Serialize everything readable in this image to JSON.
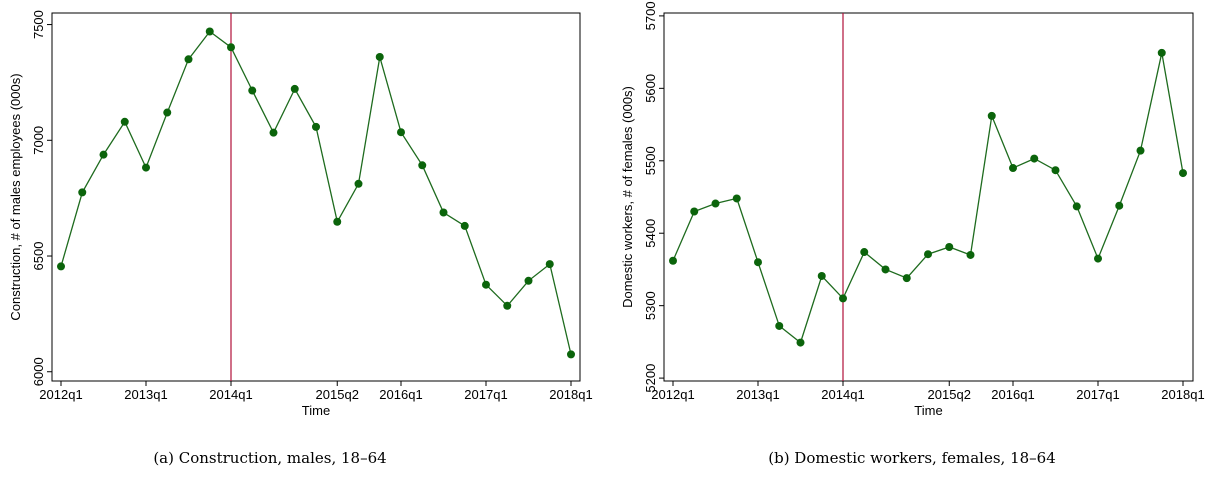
{
  "chart_data": [
    {
      "type": "line",
      "caption": "(a) Construction, males, 18–64",
      "xlabel": "Time",
      "ylabel": "Construction, # of males employees (000s)",
      "x_ticks": [
        "2012q1",
        "2013q1",
        "2014q1",
        "2015q2",
        "2016q1",
        "2017q1",
        "2018q1"
      ],
      "y_ticks": [
        6000,
        6500,
        7000,
        7500
      ],
      "ylim": [
        5960,
        7550
      ],
      "x_count": 25,
      "vline": "2014q1",
      "colors": {
        "line": "#1e6b1e",
        "marker": "#0b640b",
        "vline": "#b0103a"
      },
      "grid": false,
      "series": [
        {
          "x": [
            "2012q1",
            "2012q2",
            "2012q3",
            "2012q4",
            "2013q1",
            "2013q2",
            "2013q3",
            "2013q4",
            "2014q1",
            "2014q2",
            "2014q3",
            "2014q4",
            "2015q1",
            "2015q2",
            "2015q3",
            "2015q4",
            "2016q1",
            "2016q2",
            "2016q3",
            "2016q4",
            "2017q1",
            "2017q2",
            "2017q3",
            "2017q4",
            "2018q1"
          ],
          "values": [
            6455,
            6775,
            6938,
            7080,
            6882,
            7120,
            7350,
            7470,
            7402,
            7215,
            7033,
            7222,
            7058,
            6648,
            6812,
            7360,
            7035,
            6892,
            6688,
            6630,
            6376,
            6285,
            6393,
            6465,
            6075
          ]
        }
      ]
    },
    {
      "type": "line",
      "caption": "(b) Domestic workers, females, 18–64",
      "xlabel": "Time",
      "ylabel": "Domestic workers, # of females (000s)",
      "x_ticks": [
        "2012q1",
        "2013q1",
        "2014q1",
        "2015q2",
        "2016q1",
        "2017q1",
        "2018q1"
      ],
      "y_ticks": [
        5200,
        5300,
        5400,
        5500,
        5600,
        5700
      ],
      "ylim": [
        5196,
        5704
      ],
      "x_count": 25,
      "vline": "2014q1",
      "colors": {
        "line": "#1e6b1e",
        "marker": "#0b640b",
        "vline": "#b0103a"
      },
      "grid": false,
      "series": [
        {
          "x": [
            "2012q1",
            "2012q2",
            "2012q3",
            "2012q4",
            "2013q1",
            "2013q2",
            "2013q3",
            "2013q4",
            "2014q1",
            "2014q2",
            "2014q3",
            "2014q4",
            "2015q1",
            "2015q2",
            "2015q3",
            "2015q4",
            "2016q1",
            "2016q2",
            "2016q3",
            "2016q4",
            "2017q1",
            "2017q2",
            "2017q3",
            "2017q4",
            "2018q1"
          ],
          "values": [
            5362,
            5430,
            5441,
            5448,
            5360,
            5272,
            5249,
            5341,
            5310,
            5374,
            5350,
            5338,
            5371,
            5381,
            5370,
            5562,
            5490,
            5503,
            5487,
            5437,
            5365,
            5438,
            5514,
            5649,
            5483
          ]
        }
      ]
    }
  ]
}
